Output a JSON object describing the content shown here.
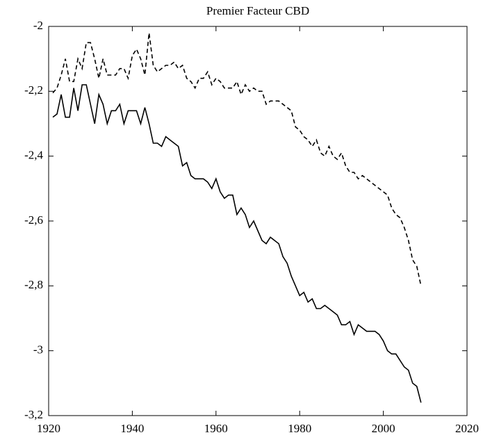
{
  "chart_data": {
    "type": "line",
    "title": "Premier Facteur CBD",
    "x": [
      1921,
      1922,
      1923,
      1924,
      1925,
      1926,
      1927,
      1928,
      1929,
      1930,
      1931,
      1932,
      1933,
      1934,
      1935,
      1936,
      1937,
      1938,
      1939,
      1940,
      1941,
      1942,
      1943,
      1944,
      1945,
      1946,
      1947,
      1948,
      1949,
      1950,
      1951,
      1952,
      1953,
      1954,
      1955,
      1956,
      1957,
      1958,
      1959,
      1960,
      1961,
      1962,
      1963,
      1964,
      1965,
      1966,
      1967,
      1968,
      1969,
      1970,
      1971,
      1972,
      1973,
      1974,
      1975,
      1976,
      1977,
      1978,
      1979,
      1980,
      1981,
      1982,
      1983,
      1984,
      1985,
      1986,
      1987,
      1988,
      1989,
      1990,
      1991,
      1992,
      1993,
      1994,
      1995,
      1996,
      1997,
      1998,
      1999,
      2000,
      2001,
      2002,
      2003,
      2004,
      2005,
      2006,
      2007,
      2008,
      2009
    ],
    "series": [
      {
        "color": "#000000",
        "dash": true,
        "values": [
          -2.205,
          -2.19,
          -2.15,
          -2.1,
          -2.17,
          -2.17,
          -2.1,
          -2.13,
          -2.05,
          -2.05,
          -2.1,
          -2.16,
          -2.1,
          -2.15,
          -2.15,
          -2.15,
          -2.13,
          -2.13,
          -2.16,
          -2.09,
          -2.07,
          -2.1,
          -2.15,
          -2.02,
          -2.12,
          -2.14,
          -2.13,
          -2.12,
          -2.12,
          -2.11,
          -2.13,
          -2.12,
          -2.16,
          -2.17,
          -2.19,
          -2.16,
          -2.16,
          -2.14,
          -2.18,
          -2.16,
          -2.17,
          -2.19,
          -2.19,
          -2.19,
          -2.17,
          -2.21,
          -2.18,
          -2.2,
          -2.19,
          -2.2,
          -2.2,
          -2.24,
          -2.23,
          -2.23,
          -2.23,
          -2.24,
          -2.25,
          -2.26,
          -2.31,
          -2.32,
          -2.34,
          -2.35,
          -2.37,
          -2.35,
          -2.39,
          -2.4,
          -2.37,
          -2.4,
          -2.41,
          -2.39,
          -2.43,
          -2.45,
          -2.45,
          -2.47,
          -2.46,
          -2.47,
          -2.48,
          -2.49,
          -2.5,
          -2.51,
          -2.52,
          -2.56,
          -2.58,
          -2.59,
          -2.62,
          -2.66,
          -2.72,
          -2.74,
          -2.8
        ]
      },
      {
        "color": "#000000",
        "dash": false,
        "values": [
          -2.28,
          -2.27,
          -2.21,
          -2.28,
          -2.28,
          -2.19,
          -2.26,
          -2.18,
          -2.18,
          -2.24,
          -2.3,
          -2.21,
          -2.24,
          -2.3,
          -2.26,
          -2.26,
          -2.24,
          -2.3,
          -2.26,
          -2.26,
          -2.26,
          -2.3,
          -2.25,
          -2.3,
          -2.36,
          -2.36,
          -2.37,
          -2.34,
          -2.35,
          -2.36,
          -2.37,
          -2.43,
          -2.42,
          -2.46,
          -2.47,
          -2.47,
          -2.47,
          -2.48,
          -2.5,
          -2.47,
          -2.51,
          -2.53,
          -2.52,
          -2.52,
          -2.58,
          -2.56,
          -2.58,
          -2.62,
          -2.6,
          -2.63,
          -2.66,
          -2.67,
          -2.65,
          -2.66,
          -2.67,
          -2.71,
          -2.73,
          -2.77,
          -2.8,
          -2.83,
          -2.82,
          -2.85,
          -2.84,
          -2.87,
          -2.87,
          -2.86,
          -2.87,
          -2.88,
          -2.89,
          -2.92,
          -2.92,
          -2.91,
          -2.95,
          -2.92,
          -2.93,
          -2.94,
          -2.94,
          -2.94,
          -2.95,
          -2.97,
          -3.0,
          -3.01,
          -3.01,
          -3.03,
          -3.05,
          -3.06,
          -3.1,
          -3.11,
          -3.16
        ]
      }
    ],
    "xlim": [
      1920,
      2020
    ],
    "xticks": [
      1920,
      1940,
      1960,
      1980,
      2000,
      2020
    ],
    "ylim": [
      -3.2,
      -2
    ],
    "yticks": [
      {
        "value": -3.2,
        "label": "-3,2"
      },
      -3,
      {
        "value": -2.8,
        "label": "-2,8"
      },
      {
        "value": -2.6,
        "label": "-2,6"
      },
      {
        "value": -2.4,
        "label": "-2,4"
      },
      {
        "value": -2.2,
        "label": "-2,2"
      },
      -2
    ],
    "grid": false
  }
}
